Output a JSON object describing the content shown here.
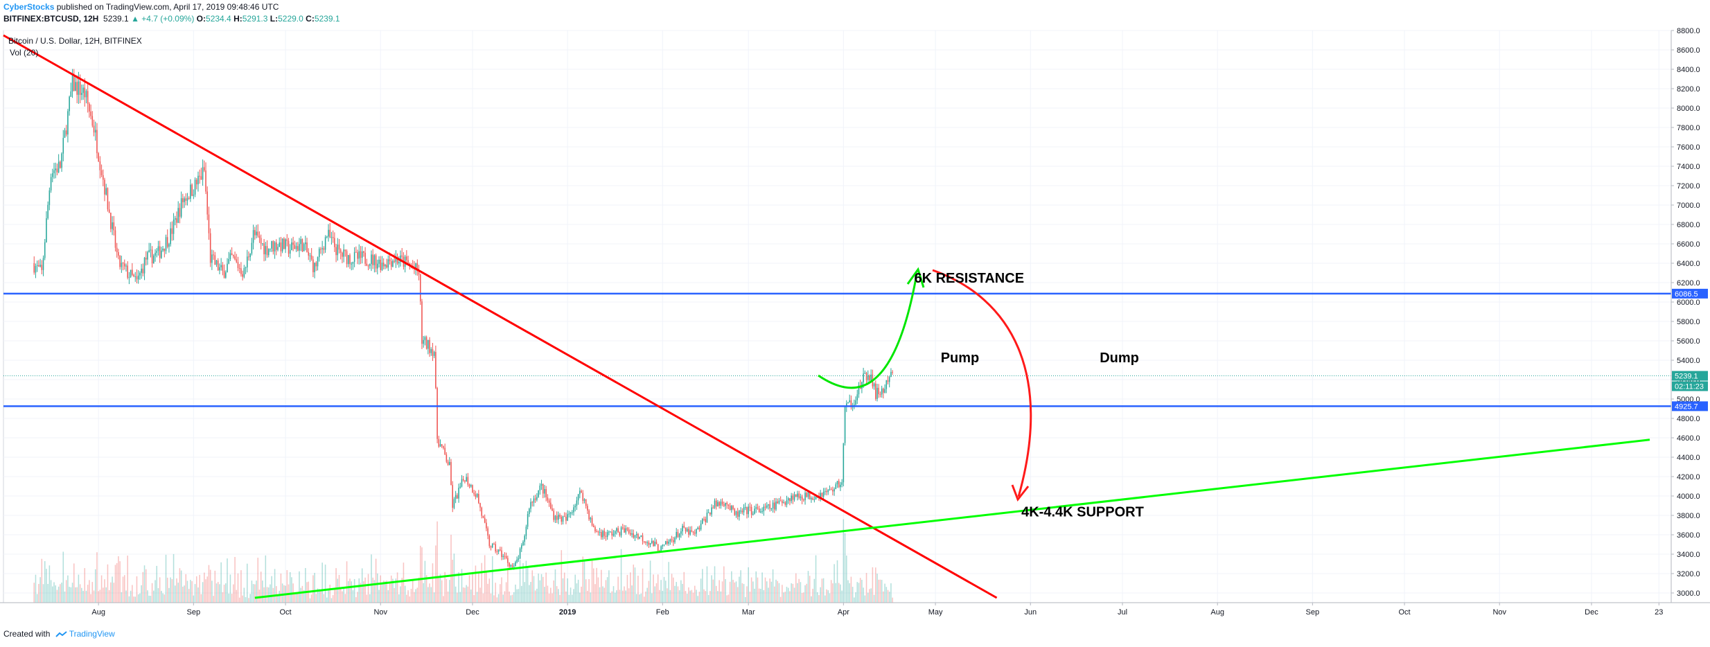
{
  "header": {
    "author": "CyberStocks",
    "published_text": "published on TradingView.com, April 17, 2019 09:48:46 UTC",
    "symbol": "BITFINEX:BTCUSD, 12H",
    "last": "5239.1",
    "change": "▲ +4.7 (+0.09%)",
    "o_label": "O:",
    "o_val": "5234.4",
    "h_label": "H:",
    "h_val": "5291.3",
    "l_label": "L:",
    "l_val": "5229.0",
    "c_label": "C:",
    "c_val": "5239.1"
  },
  "footer": {
    "created_with": "Created with",
    "brand": "TradingView"
  },
  "chart_data": {
    "type": "candlestick",
    "title": "Bitcoin / U.S. Dollar, 12H, BITFINEX",
    "volume_label": "Vol (20)",
    "ylim": [
      2900,
      8800
    ],
    "y_ticks": [
      3000,
      3200,
      3400,
      3600,
      3800,
      4000,
      4200,
      4400,
      4600,
      4800,
      5000,
      5200,
      5400,
      5600,
      5800,
      6000,
      6200,
      6400,
      6600,
      6800,
      7000,
      7200,
      7400,
      7600,
      7800,
      8000,
      8200,
      8400,
      8600,
      8800
    ],
    "y_tick_labels": [
      "3000.0",
      "3200.0",
      "3400.0",
      "3600.0",
      "3800.0",
      "4000.0",
      "4200.0",
      "4400.0",
      "4600.0",
      "4800.0",
      "5000.0",
      "5200.0",
      "5400.0",
      "5600.0",
      "5800.0",
      "6000.0",
      "6200.0",
      "6400.0",
      "6600.0",
      "6800.0",
      "7000.0",
      "7200.0",
      "7400.0",
      "7600.0",
      "7800.0",
      "8000.0",
      "8200.0",
      "8400.0",
      "8600.0",
      "8800.0"
    ],
    "x_ticks": [
      {
        "label": "Aug",
        "date": "2018-08-01"
      },
      {
        "label": "Sep",
        "date": "2018-09-01"
      },
      {
        "label": "Oct",
        "date": "2018-10-01"
      },
      {
        "label": "Nov",
        "date": "2018-11-01"
      },
      {
        "label": "Dec",
        "date": "2018-12-01"
      },
      {
        "label": "2019",
        "date": "2019-01-01",
        "bold": true
      },
      {
        "label": "Feb",
        "date": "2019-02-01"
      },
      {
        "label": "Mar",
        "date": "2019-03-01"
      },
      {
        "label": "Apr",
        "date": "2019-04-01"
      },
      {
        "label": "May",
        "date": "2019-05-01"
      },
      {
        "label": "Jun",
        "date": "2019-06-01"
      },
      {
        "label": "Jul",
        "date": "2019-07-01"
      },
      {
        "label": "Aug",
        "date": "2019-08-01"
      },
      {
        "label": "Sep",
        "date": "2019-09-01"
      },
      {
        "label": "Oct",
        "date": "2019-10-01"
      },
      {
        "label": "Nov",
        "date": "2019-11-01"
      },
      {
        "label": "Dec",
        "date": "2019-12-01"
      },
      {
        "label": "23",
        "date": "2019-12-23"
      }
    ],
    "price_path": [
      [
        "2018-07-11",
        6400
      ],
      [
        "2018-07-14",
        6300
      ],
      [
        "2018-07-17",
        7350
      ],
      [
        "2018-07-20",
        7400
      ],
      [
        "2018-07-24",
        8250
      ],
      [
        "2018-07-28",
        8150
      ],
      [
        "2018-07-31",
        7800
      ],
      [
        "2018-08-04",
        7100
      ],
      [
        "2018-08-08",
        6400
      ],
      [
        "2018-08-11",
        6300
      ],
      [
        "2018-08-14",
        6200
      ],
      [
        "2018-08-17",
        6450
      ],
      [
        "2018-08-21",
        6500
      ],
      [
        "2018-08-25",
        6700
      ],
      [
        "2018-08-29",
        7050
      ],
      [
        "2018-09-02",
        7200
      ],
      [
        "2018-09-05",
        7350
      ],
      [
        "2018-09-07",
        6450
      ],
      [
        "2018-09-11",
        6300
      ],
      [
        "2018-09-14",
        6450
      ],
      [
        "2018-09-18",
        6300
      ],
      [
        "2018-09-21",
        6700
      ],
      [
        "2018-09-25",
        6550
      ],
      [
        "2018-09-29",
        6600
      ],
      [
        "2018-10-03",
        6550
      ],
      [
        "2018-10-07",
        6600
      ],
      [
        "2018-10-11",
        6350
      ],
      [
        "2018-10-15",
        6700
      ],
      [
        "2018-10-19",
        6500
      ],
      [
        "2018-10-23",
        6450
      ],
      [
        "2018-10-28",
        6450
      ],
      [
        "2018-11-02",
        6400
      ],
      [
        "2018-11-06",
        6450
      ],
      [
        "2018-11-10",
        6400
      ],
      [
        "2018-11-14",
        6300
      ],
      [
        "2018-11-15",
        5600
      ],
      [
        "2018-11-19",
        5500
      ],
      [
        "2018-11-20",
        4600
      ],
      [
        "2018-11-24",
        4300
      ],
      [
        "2018-11-25",
        3900
      ],
      [
        "2018-11-29",
        4200
      ],
      [
        "2018-12-03",
        4000
      ],
      [
        "2018-12-07",
        3500
      ],
      [
        "2018-12-11",
        3400
      ],
      [
        "2018-12-15",
        3250
      ],
      [
        "2018-12-18",
        3500
      ],
      [
        "2018-12-20",
        3900
      ],
      [
        "2018-12-24",
        4100
      ],
      [
        "2018-12-28",
        3800
      ],
      [
        "2019-01-01",
        3750
      ],
      [
        "2019-01-06",
        4050
      ],
      [
        "2019-01-10",
        3650
      ],
      [
        "2019-01-14",
        3600
      ],
      [
        "2019-01-20",
        3650
      ],
      [
        "2019-01-27",
        3550
      ],
      [
        "2019-02-01",
        3450
      ],
      [
        "2019-02-08",
        3650
      ],
      [
        "2019-02-12",
        3600
      ],
      [
        "2019-02-18",
        3900
      ],
      [
        "2019-02-22",
        3950
      ],
      [
        "2019-02-25",
        3800
      ],
      [
        "2019-03-01",
        3850
      ],
      [
        "2019-03-06",
        3850
      ],
      [
        "2019-03-10",
        3900
      ],
      [
        "2019-03-16",
        4000
      ],
      [
        "2019-03-22",
        4000
      ],
      [
        "2019-03-28",
        4050
      ],
      [
        "2019-04-01",
        4150
      ],
      [
        "2019-04-02",
        4900
      ],
      [
        "2019-04-05",
        5000
      ],
      [
        "2019-04-08",
        5200
      ],
      [
        "2019-04-10",
        5250
      ],
      [
        "2019-04-12",
        5050
      ],
      [
        "2019-04-15",
        5100
      ],
      [
        "2019-04-17",
        5239
      ]
    ],
    "series": [
      {
        "name": "Resistance",
        "type": "hline",
        "value": 6086.5,
        "label": "6086.5",
        "color": "#2962ff"
      },
      {
        "name": "Support",
        "type": "hline",
        "value": 4925.7,
        "label": "4925.7",
        "color": "#2962ff"
      },
      {
        "name": "Last price",
        "type": "hline",
        "value": 5239.1,
        "label": "5239.1",
        "color": "#26a69a",
        "countdown": "02:11:23"
      },
      {
        "name": "Downtrend line",
        "type": "trendline",
        "color": "#ff0000",
        "points": [
          [
            "2018-07-01",
            8750
          ],
          [
            "2019-05-21",
            2950
          ]
        ]
      },
      {
        "name": "Uptrend line",
        "type": "trendline",
        "color": "#00ff00",
        "points": [
          [
            "2018-09-21",
            2950
          ],
          [
            "2019-12-20",
            4580
          ]
        ]
      }
    ],
    "annotations": [
      {
        "text": "6K RESISTANCE",
        "date": "2019-05-12",
        "price": 6200
      },
      {
        "text": "Pump",
        "date": "2019-05-09",
        "price": 5380
      },
      {
        "text": "Dump",
        "date": "2019-06-30",
        "price": 5380
      },
      {
        "text": "4K-4.4K SUPPORT",
        "date": "2019-06-18",
        "price": 3790
      }
    ],
    "grid": true,
    "price_scale": "right"
  }
}
